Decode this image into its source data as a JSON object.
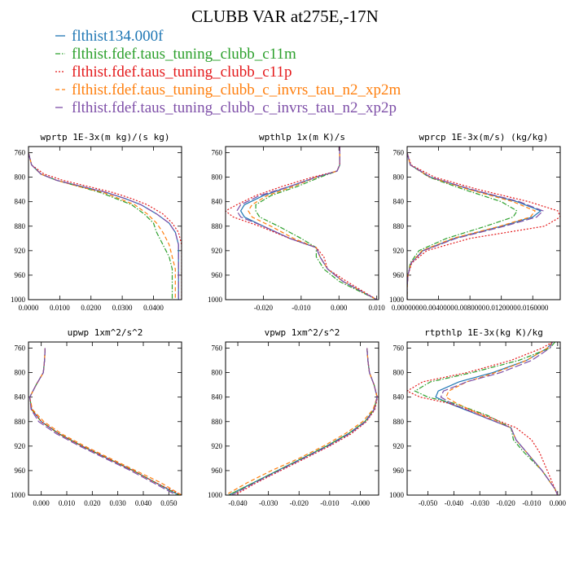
{
  "figure": {
    "title": "CLUBB VAR at275E,-17N",
    "legend": [
      {
        "label": "flthist134.000f",
        "color": "#1f77b4",
        "dash": "solid"
      },
      {
        "label": "flthist.fdef.taus_tuning_clubb_c11m",
        "color": "#2ca02c",
        "dash": "dashdot"
      },
      {
        "label": "flthist.fdef.taus_tuning_clubb_c11p",
        "color": "#e41a1c",
        "dash": "dot"
      },
      {
        "label": "flthist.fdef.taus_tuning_clubb_c_invrs_tau_n2_xp2m",
        "color": "#ff7f0e",
        "dash": "dash"
      },
      {
        "label": "flthist.fdef.taus_tuning_clubb_c_invrs_tau_n2_xp2p",
        "color": "#7e4fa8",
        "dash": "longdash"
      }
    ]
  },
  "chart_data": [
    {
      "type": "line",
      "title": "wprtp  1E-3x(m kg)/(s kg)",
      "xlim": [
        0,
        0.049
      ],
      "ylim": [
        1000,
        750
      ],
      "xticks": [
        0,
        0.01,
        0.02,
        0.03,
        0.04
      ],
      "xticklabels": [
        "0.0000",
        "0.0100",
        "0.0200",
        "0.0300",
        "0.0400"
      ],
      "yticks": [
        760,
        800,
        840,
        880,
        920,
        960,
        1000
      ],
      "y": [
        760,
        780,
        795,
        805,
        815,
        825,
        835,
        845,
        860,
        875,
        890,
        910,
        930,
        950,
        970,
        990,
        1000
      ],
      "series": [
        {
          "values": [
            0.0,
            0.001,
            0.004,
            0.009,
            0.017,
            0.025,
            0.031,
            0.036,
            0.041,
            0.045,
            0.047,
            0.048,
            0.048,
            0.048,
            0.048,
            0.048,
            0.048
          ]
        },
        {
          "values": [
            0.0,
            0.001,
            0.004,
            0.009,
            0.016,
            0.023,
            0.028,
            0.033,
            0.037,
            0.04,
            0.041,
            0.043,
            0.045,
            0.046,
            0.046,
            0.046,
            0.046
          ]
        },
        {
          "values": [
            0.0,
            0.001,
            0.005,
            0.011,
            0.019,
            0.027,
            0.033,
            0.038,
            0.043,
            0.046,
            0.048,
            0.049,
            0.049,
            0.049,
            0.049,
            0.049,
            0.049
          ]
        },
        {
          "values": [
            0.0,
            0.001,
            0.004,
            0.009,
            0.016,
            0.024,
            0.029,
            0.034,
            0.038,
            0.041,
            0.043,
            0.045,
            0.046,
            0.047,
            0.047,
            0.047,
            0.047
          ]
        },
        {
          "values": [
            0.0,
            0.001,
            0.004,
            0.009,
            0.017,
            0.025,
            0.031,
            0.036,
            0.041,
            0.045,
            0.047,
            0.048,
            0.048,
            0.048,
            0.048,
            0.048,
            0.048
          ]
        }
      ]
    },
    {
      "type": "line",
      "title": "wpthlp  1x(m K)/s",
      "xlim": [
        -0.03,
        0.0105
      ],
      "ylim": [
        1000,
        750
      ],
      "xticks": [
        -0.02,
        -0.01,
        0.0,
        0.01
      ],
      "xticklabels": [
        "-0.020",
        "-0.010",
        "0.000",
        "0.010"
      ],
      "yticks": [
        760,
        800,
        840,
        880,
        920,
        960,
        1000
      ],
      "y": [
        750,
        780,
        790,
        800,
        815,
        830,
        845,
        855,
        865,
        880,
        900,
        915,
        930,
        950,
        970,
        1000
      ],
      "series": [
        {
          "values": [
            0.0002,
            0.0002,
            -0.0005,
            -0.006,
            -0.013,
            -0.02,
            -0.025,
            -0.026,
            -0.025,
            -0.02,
            -0.013,
            -0.006,
            -0.005,
            -0.003,
            0.001,
            0.01
          ]
        },
        {
          "values": [
            0.0002,
            0.0002,
            -0.0005,
            -0.005,
            -0.011,
            -0.018,
            -0.022,
            -0.022,
            -0.021,
            -0.016,
            -0.01,
            -0.006,
            -0.006,
            -0.004,
            0.0,
            0.01
          ]
        },
        {
          "values": [
            0.0002,
            0.0002,
            -0.0005,
            -0.007,
            -0.015,
            -0.022,
            -0.027,
            -0.03,
            -0.028,
            -0.021,
            -0.013,
            -0.006,
            -0.004,
            -0.003,
            0.002,
            0.01
          ]
        },
        {
          "values": [
            0.0002,
            0.0002,
            -0.0005,
            -0.006,
            -0.012,
            -0.019,
            -0.023,
            -0.024,
            -0.023,
            -0.018,
            -0.012,
            -0.006,
            -0.005,
            -0.003,
            0.001,
            0.01
          ]
        },
        {
          "values": [
            0.0002,
            0.0002,
            -0.0005,
            -0.006,
            -0.013,
            -0.021,
            -0.026,
            -0.027,
            -0.026,
            -0.02,
            -0.013,
            -0.006,
            -0.005,
            -0.003,
            0.001,
            0.01
          ]
        }
      ]
    },
    {
      "type": "line",
      "title": "wprcp  1E-3x(m/s) (kg/kg)",
      "xlim": [
        0,
        0.0195
      ],
      "ylim": [
        1000,
        750
      ],
      "xticks": [
        0,
        0.004,
        0.008,
        0.012,
        0.016
      ],
      "xticklabels": [
        "0.0000000",
        "0.0040000",
        "0.0080000",
        "0.0120000",
        "0.0160000"
      ],
      "yticks": [
        760,
        800,
        840,
        880,
        920,
        960,
        1000
      ],
      "y": [
        760,
        780,
        800,
        820,
        840,
        855,
        865,
        880,
        900,
        920,
        940,
        960,
        980,
        1000
      ],
      "series": [
        {
          "values": [
            0.0,
            0.0004,
            0.003,
            0.008,
            0.014,
            0.017,
            0.016,
            0.012,
            0.006,
            0.002,
            0.0005,
            0.0001,
            0.0,
            0.0
          ]
        },
        {
          "values": [
            0.0,
            0.0004,
            0.0028,
            0.0072,
            0.012,
            0.014,
            0.0135,
            0.01,
            0.005,
            0.0015,
            0.0004,
            0.0001,
            0.0,
            0.0
          ]
        },
        {
          "values": [
            0.0,
            0.0005,
            0.0035,
            0.009,
            0.0155,
            0.0192,
            0.0195,
            0.0175,
            0.008,
            0.0025,
            0.0006,
            0.0001,
            0.0,
            0.0
          ]
        },
        {
          "values": [
            0.0,
            0.0004,
            0.0029,
            0.0078,
            0.0135,
            0.0163,
            0.0157,
            0.0118,
            0.0058,
            0.0019,
            0.0005,
            0.0001,
            0.0,
            0.0
          ]
        },
        {
          "values": [
            0.0,
            0.0004,
            0.003,
            0.0082,
            0.0143,
            0.0173,
            0.0165,
            0.0124,
            0.0062,
            0.0021,
            0.0005,
            0.0001,
            0.0,
            0.0
          ]
        }
      ]
    },
    {
      "type": "line",
      "title": "upwp  1xm^2/s^2",
      "xlim": [
        -0.005,
        0.055
      ],
      "ylim": [
        1000,
        750
      ],
      "xticks": [
        0,
        0.01,
        0.02,
        0.03,
        0.04,
        0.05
      ],
      "xticklabels": [
        "0.000",
        "0.010",
        "0.020",
        "0.030",
        "0.040",
        "0.050"
      ],
      "yticks": [
        760,
        800,
        840,
        880,
        920,
        960,
        1000
      ],
      "y": [
        760,
        780,
        800,
        820,
        840,
        860,
        880,
        900,
        920,
        940,
        960,
        980,
        1000
      ],
      "series": [
        {
          "values": [
            0.0015,
            0.0013,
            0.0008,
            -0.002,
            -0.0045,
            -0.0038,
            0.0,
            0.007,
            0.016,
            0.026,
            0.036,
            0.045,
            0.054
          ]
        },
        {
          "values": [
            0.0015,
            0.0013,
            0.0008,
            -0.002,
            -0.0045,
            -0.0038,
            0.0,
            0.007,
            0.016,
            0.026,
            0.036,
            0.045,
            0.054
          ]
        },
        {
          "values": [
            0.0015,
            0.0013,
            0.0008,
            -0.002,
            -0.0045,
            -0.0038,
            0.0,
            0.007,
            0.016,
            0.026,
            0.036,
            0.045,
            0.055
          ]
        },
        {
          "values": [
            0.0015,
            0.0013,
            0.0008,
            -0.002,
            -0.0045,
            -0.0035,
            0.001,
            0.008,
            0.017,
            0.027,
            0.037,
            0.047,
            0.055
          ]
        },
        {
          "values": [
            0.0015,
            0.0013,
            0.0008,
            -0.002,
            -0.0045,
            -0.004,
            -0.001,
            0.006,
            0.015,
            0.025,
            0.035,
            0.044,
            0.053
          ]
        }
      ]
    },
    {
      "type": "line",
      "title": "vpwp  1xm^2/s^2",
      "xlim": [
        -0.044,
        0.006
      ],
      "ylim": [
        1000,
        750
      ],
      "xticks": [
        -0.04,
        -0.03,
        -0.02,
        -0.01,
        0.0
      ],
      "xticklabels": [
        "-0.040",
        "-0.030",
        "-0.020",
        "-0.010",
        "-0.000"
      ],
      "yticks": [
        760,
        800,
        840,
        880,
        920,
        960,
        1000
      ],
      "y": [
        760,
        780,
        800,
        820,
        840,
        860,
        880,
        900,
        920,
        940,
        960,
        980,
        1000
      ],
      "series": [
        {
          "values": [
            0.0022,
            0.0025,
            0.003,
            0.0045,
            0.0055,
            0.0045,
            0.0015,
            -0.004,
            -0.011,
            -0.019,
            -0.027,
            -0.035,
            -0.043
          ]
        },
        {
          "values": [
            0.0022,
            0.0025,
            0.003,
            0.0045,
            0.0055,
            0.0045,
            0.0015,
            -0.004,
            -0.011,
            -0.019,
            -0.027,
            -0.035,
            -0.043
          ]
        },
        {
          "values": [
            0.0022,
            0.0025,
            0.003,
            0.0045,
            0.0056,
            0.0048,
            0.002,
            -0.003,
            -0.01,
            -0.018,
            -0.026,
            -0.034,
            -0.041
          ]
        },
        {
          "values": [
            0.0022,
            0.0025,
            0.003,
            0.0045,
            0.0055,
            0.0042,
            0.0008,
            -0.005,
            -0.012,
            -0.02,
            -0.029,
            -0.037,
            -0.044
          ]
        },
        {
          "values": [
            0.0022,
            0.0025,
            0.003,
            0.0045,
            0.0055,
            0.0046,
            0.0018,
            -0.0035,
            -0.0105,
            -0.0185,
            -0.0265,
            -0.0345,
            -0.042
          ]
        }
      ]
    },
    {
      "type": "line",
      "title": "rtpthlp  1E-3x(kg K)/kg",
      "xlim": [
        -0.058,
        0.001
      ],
      "ylim": [
        1000,
        750
      ],
      "xticks": [
        -0.05,
        -0.04,
        -0.03,
        -0.02,
        -0.01,
        0.0
      ],
      "xticklabels": [
        "-0.050",
        "-0.040",
        "-0.030",
        "-0.020",
        "-0.010",
        "0.000"
      ],
      "yticks": [
        760,
        800,
        840,
        880,
        920,
        960,
        1000
      ],
      "y": [
        750,
        760,
        780,
        800,
        815,
        830,
        840,
        850,
        870,
        890,
        910,
        930,
        960,
        990,
        1000
      ],
      "series": [
        {
          "values": [
            -0.002,
            -0.004,
            -0.012,
            -0.025,
            -0.038,
            -0.046,
            -0.047,
            -0.042,
            -0.03,
            -0.018,
            -0.016,
            -0.012,
            -0.006,
            -0.001,
            0.0
          ]
        },
        {
          "values": [
            -0.001,
            -0.003,
            -0.015,
            -0.033,
            -0.049,
            -0.055,
            -0.05,
            -0.04,
            -0.027,
            -0.018,
            -0.017,
            -0.013,
            -0.006,
            -0.001,
            0.0
          ]
        },
        {
          "values": [
            -0.002,
            -0.006,
            -0.018,
            -0.035,
            -0.052,
            -0.058,
            -0.053,
            -0.042,
            -0.028,
            -0.016,
            -0.01,
            -0.007,
            -0.004,
            -0.001,
            0.0
          ]
        },
        {
          "values": [
            -0.002,
            -0.004,
            -0.012,
            -0.024,
            -0.035,
            -0.042,
            -0.043,
            -0.039,
            -0.029,
            -0.018,
            -0.016,
            -0.012,
            -0.006,
            -0.001,
            0.0
          ]
        },
        {
          "values": [
            -0.002,
            -0.003,
            -0.01,
            -0.022,
            -0.035,
            -0.044,
            -0.045,
            -0.041,
            -0.03,
            -0.018,
            -0.016,
            -0.012,
            -0.006,
            -0.001,
            0.0
          ]
        }
      ]
    }
  ]
}
